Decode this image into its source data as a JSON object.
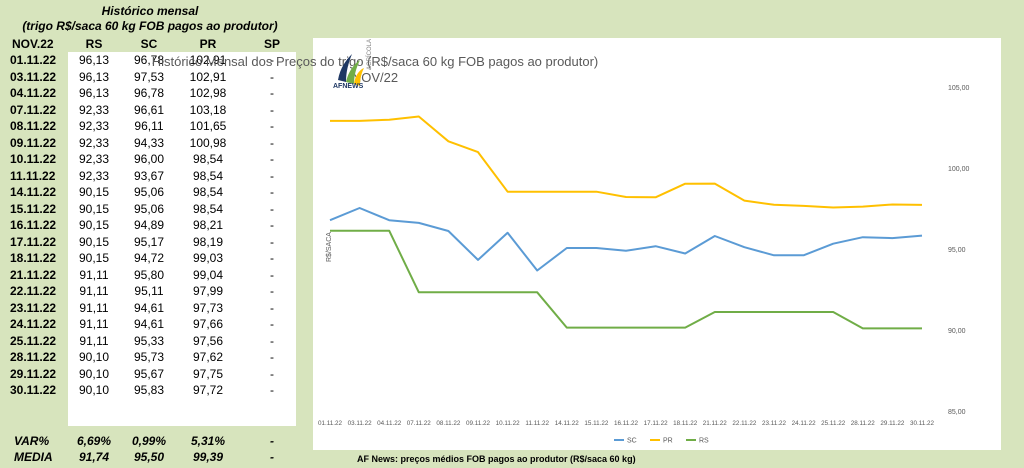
{
  "table": {
    "title_line1": "Histórico mensal",
    "title_line2": "(trigo R$/saca 60 kg FOB pagos ao produtor)",
    "headers": [
      "NOV.22",
      "RS",
      "SC",
      "PR",
      "SP"
    ],
    "rows": [
      [
        "01.11.22",
        "96,13",
        "96,78",
        "102,91",
        "-"
      ],
      [
        "03.11.22",
        "96,13",
        "97,53",
        "102,91",
        "-"
      ],
      [
        "04.11.22",
        "96,13",
        "96,78",
        "102,98",
        "-"
      ],
      [
        "07.11.22",
        "92,33",
        "96,61",
        "103,18",
        "-"
      ],
      [
        "08.11.22",
        "92,33",
        "96,11",
        "101,65",
        "-"
      ],
      [
        "09.11.22",
        "92,33",
        "94,33",
        "100,98",
        "-"
      ],
      [
        "10.11.22",
        "92,33",
        "96,00",
        "98,54",
        "-"
      ],
      [
        "11.11.22",
        "92,33",
        "93,67",
        "98,54",
        "-"
      ],
      [
        "14.11.22",
        "90,15",
        "95,06",
        "98,54",
        "-"
      ],
      [
        "15.11.22",
        "90,15",
        "95,06",
        "98,54",
        "-"
      ],
      [
        "16.11.22",
        "90,15",
        "94,89",
        "98,21",
        "-"
      ],
      [
        "17.11.22",
        "90,15",
        "95,17",
        "98,19",
        "-"
      ],
      [
        "18.11.22",
        "90,15",
        "94,72",
        "99,03",
        "-"
      ],
      [
        "21.11.22",
        "91,11",
        "95,80",
        "99,04",
        "-"
      ],
      [
        "22.11.22",
        "91,11",
        "95,11",
        "97,99",
        "-"
      ],
      [
        "23.11.22",
        "91,11",
        "94,61",
        "97,73",
        "-"
      ],
      [
        "24.11.22",
        "91,11",
        "94,61",
        "97,66",
        "-"
      ],
      [
        "25.11.22",
        "91,11",
        "95,33",
        "97,56",
        "-"
      ],
      [
        "28.11.22",
        "90,10",
        "95,73",
        "97,62",
        "-"
      ],
      [
        "29.11.22",
        "90,10",
        "95,67",
        "97,75",
        "-"
      ],
      [
        "30.11.22",
        "90,10",
        "95,83",
        "97,72",
        "-"
      ]
    ],
    "var_label": "VAR%",
    "var_values": [
      "6,69%",
      "0,99%",
      "5,31%",
      "-"
    ],
    "media_label": "MEDIA",
    "media_values": [
      "91,74",
      "95,50",
      "99,39",
      "-"
    ]
  },
  "logo": {
    "name": "AFNEWS",
    "side": "AGRÍCOLA"
  },
  "footnote": "AF News: preços médios FOB pagos ao produtor (R$/saca 60 kg)",
  "colors": {
    "SC": "#5b9bd5",
    "PR": "#ffc000",
    "RS": "#70ad47"
  },
  "chart_data": {
    "type": "line",
    "title": "Histórico Mensal  dos Preços do trigo (R$/saca  60 kg FOB pagos ao produtor)",
    "subtitle": "NOV/22",
    "ylabel": "R$/SACA",
    "xlabel": "",
    "ylim": [
      85,
      105
    ],
    "yticks": [
      "85,00",
      "90,00",
      "95,00",
      "100,00",
      "105,00"
    ],
    "categories": [
      "01.11.22",
      "03.11.22",
      "04.11.22",
      "07.11.22",
      "08.11.22",
      "09.11.22",
      "10.11.22",
      "11.11.22",
      "14.11.22",
      "15.11.22",
      "16.11.22",
      "17.11.22",
      "18.11.22",
      "21.11.22",
      "22.11.22",
      "23.11.22",
      "24.11.22",
      "25.11.22",
      "28.11.22",
      "29.11.22",
      "30.11.22"
    ],
    "series": [
      {
        "name": "SC",
        "values": [
          96.78,
          97.53,
          96.78,
          96.61,
          96.11,
          94.33,
          96.0,
          93.67,
          95.06,
          95.06,
          94.89,
          95.17,
          94.72,
          95.8,
          95.11,
          94.61,
          94.61,
          95.33,
          95.73,
          95.67,
          95.83
        ]
      },
      {
        "name": "PR",
        "values": [
          102.91,
          102.91,
          102.98,
          103.18,
          101.65,
          100.98,
          98.54,
          98.54,
          98.54,
          98.54,
          98.21,
          98.19,
          99.03,
          99.04,
          97.99,
          97.73,
          97.66,
          97.56,
          97.62,
          97.75,
          97.72
        ]
      },
      {
        "name": "RS",
        "values": [
          96.13,
          96.13,
          96.13,
          92.33,
          92.33,
          92.33,
          92.33,
          92.33,
          90.15,
          90.15,
          90.15,
          90.15,
          90.15,
          91.11,
          91.11,
          91.11,
          91.11,
          91.11,
          90.1,
          90.1,
          90.1
        ]
      }
    ],
    "legend_position": "bottom",
    "grid": false
  }
}
